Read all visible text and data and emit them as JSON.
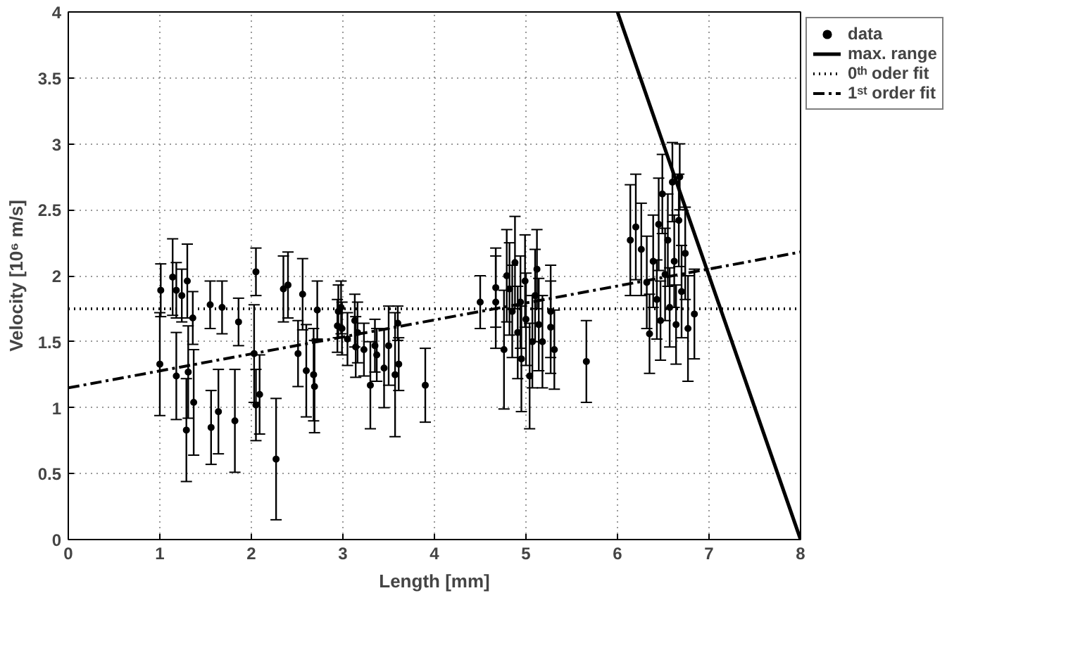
{
  "chart_data": {
    "type": "scatter",
    "xlabel": "Length [mm]",
    "ylabel": "Velocity [10⁶ m/s]",
    "xlim": [
      0,
      8
    ],
    "ylim": [
      0,
      4
    ],
    "xticks": [
      0,
      1,
      2,
      3,
      4,
      5,
      6,
      7,
      8
    ],
    "yticks": [
      0,
      0.5,
      1,
      1.5,
      2,
      2.5,
      3,
      3.5,
      4
    ],
    "grid": true,
    "legend": "right",
    "series": [
      {
        "name": "data",
        "color": "#000000",
        "marker": "circle",
        "x": [
          1.01,
          1.0,
          1.14,
          1.18,
          1.24,
          1.3,
          1.18,
          1.31,
          1.29,
          1.36,
          1.37,
          1.55,
          1.56,
          1.64,
          1.68,
          1.82,
          1.86,
          2.05,
          2.03,
          2.05,
          2.09,
          2.27,
          2.35,
          2.4,
          2.51,
          2.56,
          2.6,
          2.68,
          2.69,
          2.72,
          2.95,
          2.98,
          2.94,
          2.99,
          3.05,
          3.13,
          3.16,
          3.14,
          3.23,
          3.3,
          3.35,
          3.37,
          3.45,
          3.5,
          3.57,
          3.6,
          3.61,
          3.9,
          4.5,
          4.67,
          4.67,
          4.76,
          4.79,
          4.82,
          4.85,
          4.88,
          4.91,
          4.94,
          4.95,
          4.99,
          5.0,
          5.04,
          5.07,
          5.1,
          5.12,
          5.14,
          5.18,
          5.27,
          5.27,
          5.31,
          5.66,
          6.14,
          6.2,
          6.26,
          6.32,
          6.35,
          6.39,
          6.43,
          6.45,
          6.47,
          6.49,
          6.52,
          6.55,
          6.57,
          6.6,
          6.62,
          6.64,
          6.67,
          6.68,
          6.7,
          6.74,
          6.77,
          6.84
        ],
        "values": [
          1.89,
          1.33,
          1.99,
          1.89,
          1.85,
          1.96,
          1.24,
          1.27,
          0.83,
          1.68,
          1.04,
          1.78,
          0.85,
          0.97,
          1.76,
          0.9,
          1.65,
          2.03,
          1.41,
          1.02,
          1.1,
          0.61,
          1.9,
          1.93,
          1.41,
          1.86,
          1.28,
          1.25,
          1.16,
          1.74,
          1.73,
          1.76,
          1.62,
          1.6,
          1.52,
          1.66,
          1.57,
          1.46,
          1.44,
          1.17,
          1.47,
          1.4,
          1.3,
          1.47,
          1.25,
          1.64,
          1.33,
          1.17,
          1.8,
          1.91,
          1.8,
          1.44,
          2.0,
          1.9,
          1.73,
          2.1,
          1.57,
          1.8,
          1.37,
          1.96,
          1.67,
          1.24,
          1.5,
          1.85,
          2.05,
          1.63,
          1.5,
          1.73,
          1.61,
          1.44,
          1.35,
          2.27,
          2.37,
          2.2,
          1.95,
          1.56,
          2.11,
          1.82,
          2.39,
          1.66,
          2.62,
          2.01,
          2.27,
          1.76,
          2.71,
          2.11,
          1.63,
          2.42,
          2.75,
          1.88,
          2.17,
          1.6,
          1.71
        ],
        "errors": [
          0.2,
          0.39,
          0.29,
          0.21,
          0.2,
          0.28,
          0.33,
          0.35,
          0.39,
          0.2,
          0.4,
          0.18,
          0.28,
          0.32,
          0.2,
          0.39,
          0.18,
          0.18,
          0.37,
          0.27,
          0.3,
          0.46,
          0.25,
          0.25,
          0.25,
          0.27,
          0.35,
          0.35,
          0.35,
          0.22,
          0.2,
          0.2,
          0.2,
          0.2,
          0.2,
          0.2,
          0.23,
          0.23,
          0.2,
          0.33,
          0.2,
          0.2,
          0.3,
          0.3,
          0.47,
          0.13,
          0.2,
          0.28,
          0.2,
          0.3,
          0.35,
          0.45,
          0.35,
          0.35,
          0.35,
          0.35,
          0.35,
          0.35,
          0.4,
          0.35,
          0.35,
          0.4,
          0.35,
          0.35,
          0.3,
          0.35,
          0.35,
          0.35,
          0.35,
          0.3,
          0.31,
          0.42,
          0.4,
          0.35,
          0.35,
          0.3,
          0.35,
          0.3,
          0.35,
          0.3,
          0.3,
          0.35,
          0.35,
          0.3,
          0.3,
          0.35,
          0.3,
          0.35,
          0.25,
          0.35,
          0.35,
          0.4,
          0.34
        ]
      },
      {
        "name": "max. range",
        "type": "line",
        "color": "#000000",
        "line_style": "solid",
        "x": [
          6,
          8
        ],
        "values": [
          4,
          0
        ]
      },
      {
        "name": "0ᵗʰ oder fit",
        "type": "line",
        "color": "#000000",
        "line_style": "dotted",
        "x": [
          0,
          8
        ],
        "values": [
          1.75,
          1.75
        ]
      },
      {
        "name": "1ˢᵗ order fit",
        "type": "line",
        "color": "#000000",
        "line_style": "dashdot",
        "x": [
          0,
          8
        ],
        "values": [
          1.15,
          2.18
        ]
      }
    ]
  }
}
